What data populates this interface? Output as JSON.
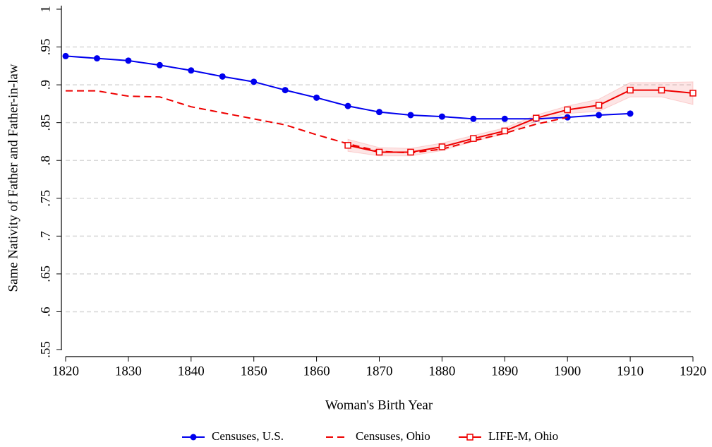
{
  "chart_data": {
    "type": "line",
    "x_label": "Woman's Birth Year",
    "y_label": "Same Nativity of Father and Father-in-law",
    "xlim": [
      1820,
      1920
    ],
    "xticks": [
      1820,
      1830,
      1840,
      1850,
      1860,
      1870,
      1880,
      1890,
      1900,
      1910,
      1920
    ],
    "ylim": [
      0.55,
      1
    ],
    "yticks": [
      {
        "value": 0.55,
        "label": ".55"
      },
      {
        "value": 0.6,
        "label": ".6"
      },
      {
        "value": 0.65,
        "label": ".65"
      },
      {
        "value": 0.7,
        "label": ".7"
      },
      {
        "value": 0.75,
        "label": ".75"
      },
      {
        "value": 0.8,
        "label": ".8"
      },
      {
        "value": 0.85,
        "label": ".85"
      },
      {
        "value": 0.9,
        "label": ".9"
      },
      {
        "value": 0.95,
        "label": ".95"
      },
      1
    ],
    "grid": true,
    "legend": "bottom",
    "series": [
      {
        "name": "Censuses, U.S.",
        "color": "#0000ee",
        "marker": "circle",
        "dash": false,
        "x": [
          1820,
          1825,
          1830,
          1835,
          1840,
          1845,
          1850,
          1855,
          1860,
          1865,
          1870,
          1875,
          1880,
          1885,
          1890,
          1895,
          1900,
          1905,
          1910
        ],
        "values": [
          0.938,
          0.935,
          0.932,
          0.926,
          0.919,
          0.911,
          0.904,
          0.893,
          0.883,
          0.872,
          0.864,
          0.86,
          0.858,
          0.855,
          0.855,
          0.855,
          0.857,
          0.86,
          0.862
        ]
      },
      {
        "name": "Censuses, Ohio",
        "color": "#ee0000",
        "marker": "none",
        "dash": true,
        "x": [
          1820,
          1825,
          1830,
          1835,
          1840,
          1845,
          1850,
          1855,
          1860,
          1865,
          1870,
          1875,
          1880,
          1885,
          1890,
          1895,
          1900
        ],
        "values": [
          0.892,
          0.892,
          0.885,
          0.884,
          0.871,
          0.863,
          0.855,
          0.847,
          0.834,
          0.822,
          0.812,
          0.81,
          0.815,
          0.826,
          0.836,
          0.848,
          0.857
        ]
      },
      {
        "name": "LIFE-M, Ohio",
        "color": "#ee0000",
        "marker": "square",
        "dash": false,
        "x": [
          1865,
          1870,
          1875,
          1880,
          1885,
          1890,
          1895,
          1900,
          1905,
          1910,
          1915,
          1920
        ],
        "values": [
          0.82,
          0.811,
          0.811,
          0.818,
          0.829,
          0.839,
          0.856,
          0.867,
          0.873,
          0.893,
          0.893,
          0.889
        ],
        "lower": [
          0.812,
          0.806,
          0.806,
          0.813,
          0.825,
          0.835,
          0.852,
          0.862,
          0.865,
          0.884,
          0.884,
          0.874
        ],
        "upper": [
          0.828,
          0.817,
          0.816,
          0.823,
          0.833,
          0.843,
          0.86,
          0.872,
          0.881,
          0.903,
          0.903,
          0.904
        ]
      }
    ]
  }
}
